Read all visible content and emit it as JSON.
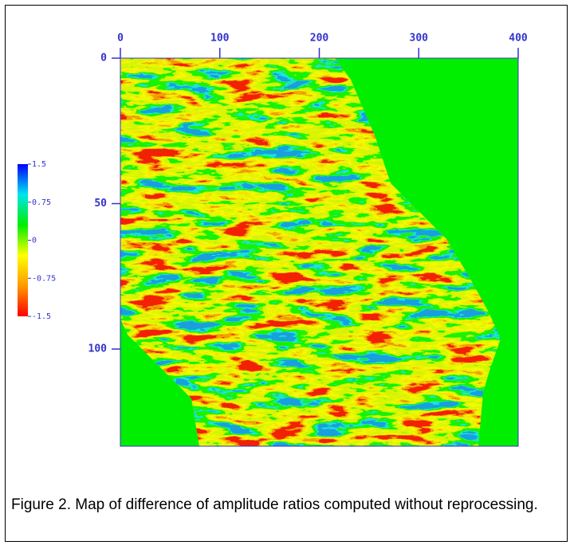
{
  "chart_data": {
    "type": "heatmap",
    "xlim": [
      0,
      400
    ],
    "xticks": [
      0,
      100,
      200,
      300,
      400
    ],
    "ylim": [
      0,
      133.4
    ],
    "yticks": [
      0,
      50,
      100
    ],
    "colorbar": {
      "lim": [
        -1.5,
        1.5
      ],
      "ticks": [
        1.5,
        0.75,
        0,
        -0.75,
        -1.5
      ],
      "colors": [
        "#ff0000",
        "#ff9900",
        "#ffff00",
        "#00ee00",
        "#00e5ee",
        "#0000ff"
      ]
    },
    "axis_color": "#3333cc",
    "background_color": "#00ee00",
    "caption": "Figure 2. Map of difference of amplitude ratios computed without reprocessing."
  }
}
